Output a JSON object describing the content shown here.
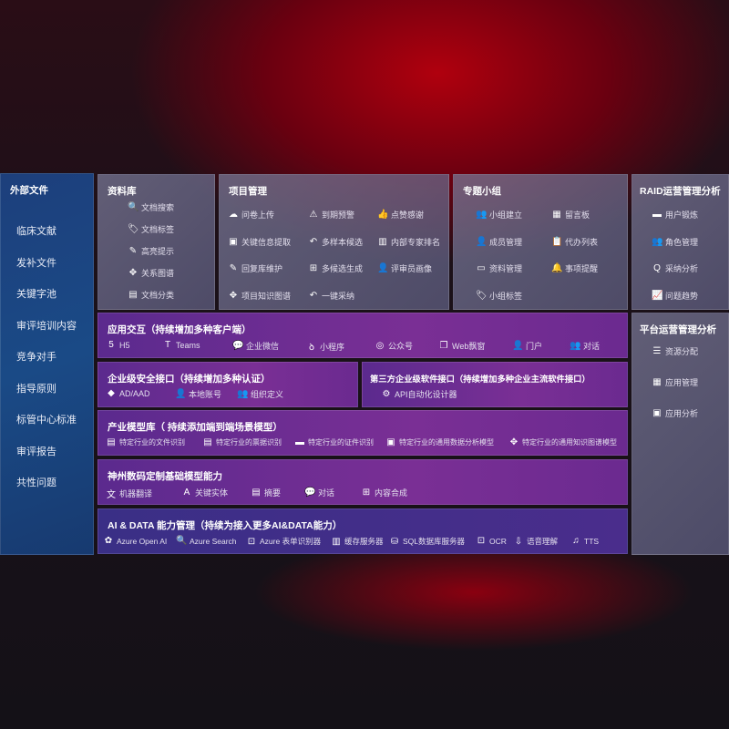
{
  "external": {
    "title": "外部文件",
    "items": [
      "临床文献",
      "发补文件",
      "关键字池",
      "审评培训内容",
      "竞争对手",
      "指导原则",
      "标管中心标准",
      "审评报告",
      "共性问题"
    ]
  },
  "library": {
    "title": "资料库",
    "items": [
      {
        "icon": "doc-search-icon",
        "g": "🔍",
        "label": "文档搜索"
      },
      {
        "icon": "tag-icon",
        "g": "🏷",
        "label": "文档标签"
      },
      {
        "icon": "pen-icon",
        "g": "✎",
        "label": "高亮提示"
      },
      {
        "icon": "graph-icon",
        "g": "✥",
        "label": "关系图谱"
      },
      {
        "icon": "doc-category-icon",
        "g": "▤",
        "label": "文档分类"
      }
    ]
  },
  "project": {
    "title": "项目管理",
    "items": [
      {
        "icon": "cloud-upload-icon",
        "g": "☁",
        "label": "问卷上传"
      },
      {
        "icon": "alarm-icon",
        "g": "⚠",
        "label": "到期预警"
      },
      {
        "icon": "thumbs-up-icon",
        "g": "👍",
        "label": "点赞感谢"
      },
      {
        "icon": "extract-icon",
        "g": "▣",
        "label": "关键信息提取"
      },
      {
        "icon": "reply-icon",
        "g": "↶",
        "label": "多样本候选"
      },
      {
        "icon": "ranking-icon",
        "g": "▥",
        "label": "内部专家排名"
      },
      {
        "icon": "edit-icon",
        "g": "✎",
        "label": "回复库维护"
      },
      {
        "icon": "puzzle-icon",
        "g": "⊞",
        "label": "多候选生成"
      },
      {
        "icon": "person-icon",
        "g": "👤",
        "label": "评审员画像"
      },
      {
        "icon": "network-icon",
        "g": "✥",
        "label": "项目知识图谱"
      },
      {
        "icon": "reply-icon",
        "g": "↶",
        "label": "一键采纳"
      }
    ]
  },
  "group": {
    "title": "专题小组",
    "items": [
      {
        "icon": "group-icon",
        "g": "👥",
        "label": "小组建立"
      },
      {
        "icon": "bbs-icon",
        "g": "▦",
        "label": "留言板"
      },
      {
        "icon": "member-add-icon",
        "g": "👤",
        "label": "成员管理"
      },
      {
        "icon": "clipboard-icon",
        "g": "📋",
        "label": "代办列表"
      },
      {
        "icon": "folder-icon",
        "g": "▭",
        "label": "资料管理"
      },
      {
        "icon": "bell-icon",
        "g": "🔔",
        "label": "事项提醒"
      },
      {
        "icon": "tag-icon",
        "g": "🏷",
        "label": "小组标签"
      }
    ]
  },
  "raid": {
    "title": "RAID运营管理分析",
    "items": [
      {
        "icon": "id-card-icon",
        "g": "▬",
        "label": "用户锻炼"
      },
      {
        "icon": "users-icon",
        "g": "👥",
        "label": "角色管理"
      },
      {
        "icon": "qa-icon",
        "g": "Q",
        "label": "采纳分析"
      },
      {
        "icon": "trend-chart-icon",
        "g": "📈",
        "label": "问题趋势"
      }
    ]
  },
  "platform": {
    "title": "平台运营管理分析",
    "items": [
      {
        "icon": "checklist-icon",
        "g": "☰",
        "label": "资源分配"
      },
      {
        "icon": "app-grid-icon",
        "g": "▦",
        "label": "应用管理"
      },
      {
        "icon": "analytics-icon",
        "g": "▣",
        "label": "应用分析"
      }
    ]
  },
  "apps": {
    "title": "应用交互（持续增加多种客户端）",
    "items": [
      {
        "icon": "html5-icon",
        "g": "5",
        "label": "H5"
      },
      {
        "icon": "teams-icon",
        "g": "T",
        "label": "Teams"
      },
      {
        "icon": "wecom-icon",
        "g": "💬",
        "label": "企业微信"
      },
      {
        "icon": "mini-program-icon",
        "g": "ꝺ",
        "label": "小程序"
      },
      {
        "icon": "official-account-icon",
        "g": "◎",
        "label": "公众号"
      },
      {
        "icon": "window-icon",
        "g": "❐",
        "label": "Web飘窗"
      },
      {
        "icon": "portal-icon",
        "g": "👤",
        "label": "门户"
      },
      {
        "icon": "chat-users-icon",
        "g": "👥",
        "label": "对话"
      }
    ]
  },
  "security": {
    "title": "企业级安全接口（持续增加多种认证）",
    "items": [
      {
        "icon": "ad-icon",
        "g": "◆",
        "label": "AD/AAD"
      },
      {
        "icon": "local-account-icon",
        "g": "👤",
        "label": "本地账号"
      },
      {
        "icon": "org-icon",
        "g": "👥",
        "label": "组织定义"
      }
    ]
  },
  "thirdparty": {
    "title": "第三方企业级软件接口（持续增加多种企业主流软件接口）",
    "items": [
      {
        "icon": "api-gear-icon",
        "g": "⚙",
        "label": "API自动化设计器"
      }
    ]
  },
  "industry": {
    "title": "产业模型库（ 持续添加端到端场景模型）",
    "items": [
      {
        "icon": "file-icon",
        "g": "▤",
        "label": "特定行业的文件识别"
      },
      {
        "icon": "receipt-icon",
        "g": "▤",
        "label": "特定行业的票据识别"
      },
      {
        "icon": "id-card-icon",
        "g": "▬",
        "label": "特定行业的证件识别"
      },
      {
        "icon": "data-chart-icon",
        "g": "▣",
        "label": "特定行业的通用数据分析模型"
      },
      {
        "icon": "knowledge-graph-icon",
        "g": "✥",
        "label": "特定行业的通用知识图谱模型"
      }
    ]
  },
  "custom": {
    "title": "神州数码定制基础模型能力",
    "items": [
      {
        "icon": "translate-icon",
        "g": "文",
        "label": "机器翻译"
      },
      {
        "icon": "entity-icon",
        "g": "A",
        "label": "关键实体"
      },
      {
        "icon": "summary-icon",
        "g": "▤",
        "label": "摘要"
      },
      {
        "icon": "chat-icon",
        "g": "💬",
        "label": "对话"
      },
      {
        "icon": "compose-icon",
        "g": "⊞",
        "label": "内容合成"
      }
    ]
  },
  "aidata": {
    "title": "AI & DATA 能力管理（持续为接入更多AI&DATA能力）",
    "items": [
      {
        "icon": "openai-icon",
        "g": "✿",
        "label": "Azure Open AI"
      },
      {
        "icon": "search-doc-icon",
        "g": "🔍",
        "label": "Azure Search"
      },
      {
        "icon": "form-recognizer-icon",
        "g": "⊡",
        "label": "Azure 表单识别器"
      },
      {
        "icon": "cache-server-icon",
        "g": "▥",
        "label": "缓存服务器"
      },
      {
        "icon": "sql-icon",
        "g": "⛁",
        "label": "SQL数据库服务器"
      },
      {
        "icon": "ocr-icon",
        "g": "⊡",
        "label": "OCR"
      },
      {
        "icon": "speech-icon",
        "g": "⇩",
        "label": "语音理解"
      },
      {
        "icon": "tts-icon",
        "g": "♫",
        "label": "TTS"
      }
    ]
  }
}
